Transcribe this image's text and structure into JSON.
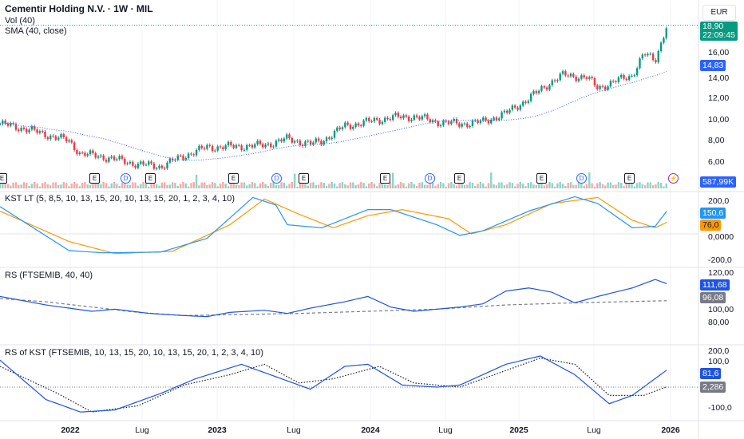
{
  "header": {
    "title": "Cementir Holding N.V. · 1W · MIL",
    "vol": "Vol (40)",
    "sma": "SMA (40, close)"
  },
  "currency": "EUR",
  "price_tag": {
    "value": "18,90",
    "countdown": "22:09:45",
    "color": "#089981"
  },
  "sma_tag": {
    "value": "14,83",
    "color": "#2962ff"
  },
  "volume_tag": {
    "value": "587,99K",
    "color": "#2962ff"
  },
  "price_ticks": [
    "16,00",
    "14,00",
    "12,00",
    "10,00",
    "8,00",
    "6,00"
  ],
  "kst": {
    "label": "KST LT (5, 8,5, 10, 13, 15, 20, 10, 13, 15, 20, 1, 2, 3, 4, 10)",
    "value": "150,6",
    "signal": "76,0",
    "ticks": [
      "200,0",
      "0,0000",
      "-200,0"
    ]
  },
  "rs": {
    "label": "RS (FTSEMIB, 40, 40)",
    "value": "111,68",
    "ma": "96,08",
    "ticks": [
      "120,00",
      "100,00",
      "80,00"
    ]
  },
  "rskst": {
    "label": "RS of KST (FTSEMIB, 10, 13, 15, 20, 10, 13, 15, 20, 1, 2, 3, 4, 10)",
    "value": "81,6",
    "signal": "2,286",
    "ticks": [
      "200,0",
      "100,0",
      "-100,0"
    ]
  },
  "x_labels": [
    {
      "t": "2022",
      "b": true
    },
    {
      "t": "Lug",
      "b": false
    },
    {
      "t": "2023",
      "b": true
    },
    {
      "t": "Lug",
      "b": false
    },
    {
      "t": "2024",
      "b": true
    },
    {
      "t": "Lug",
      "b": false
    },
    {
      "t": "2025",
      "b": true
    },
    {
      "t": "Lug",
      "b": false
    },
    {
      "t": "2026",
      "b": true
    }
  ],
  "events": [
    {
      "k": "E"
    },
    {
      "k": "E"
    },
    {
      "k": "D"
    },
    {
      "k": "E"
    },
    {
      "k": "E"
    },
    {
      "k": "D"
    },
    {
      "k": "E"
    },
    {
      "k": "E"
    },
    {
      "k": "D"
    },
    {
      "k": "E"
    },
    {
      "k": "E"
    },
    {
      "k": "D"
    },
    {
      "k": "E"
    }
  ],
  "chart_data": {
    "type": "line",
    "x_unit": "months since Oct 2021",
    "price": [
      [
        0,
        9.6
      ],
      [
        2,
        9.2
      ],
      [
        4,
        8.6
      ],
      [
        6,
        8.0
      ],
      [
        7,
        6.8
      ],
      [
        9,
        6.5
      ],
      [
        12,
        5.8
      ],
      [
        14,
        5.6
      ],
      [
        16,
        6.6
      ],
      [
        18,
        7.4
      ],
      [
        21,
        7.5
      ],
      [
        23,
        7.6
      ],
      [
        25,
        8.2
      ],
      [
        27,
        7.7
      ],
      [
        28,
        8.0
      ],
      [
        30,
        9.4
      ],
      [
        32,
        9.8
      ],
      [
        34,
        10.2
      ],
      [
        36,
        10.3
      ],
      [
        38,
        9.8
      ],
      [
        40,
        9.6
      ],
      [
        42,
        9.8
      ],
      [
        44,
        10.6
      ],
      [
        46,
        12.0
      ],
      [
        48,
        13.6
      ],
      [
        49,
        14.2
      ],
      [
        51,
        14.0
      ],
      [
        52,
        13.0
      ],
      [
        54,
        13.8
      ],
      [
        55,
        14.2
      ],
      [
        56,
        16.2
      ],
      [
        57,
        15.6
      ],
      [
        58,
        18.9
      ]
    ],
    "kst": [
      [
        0,
        180
      ],
      [
        6,
        -110
      ],
      [
        9,
        -125
      ],
      [
        14,
        -120
      ],
      [
        18,
        -30
      ],
      [
        22,
        240
      ],
      [
        24,
        190
      ],
      [
        25,
        60
      ],
      [
        28,
        40
      ],
      [
        32,
        160
      ],
      [
        34,
        160
      ],
      [
        38,
        60
      ],
      [
        40,
        -10
      ],
      [
        42,
        20
      ],
      [
        46,
        150
      ],
      [
        50,
        245
      ],
      [
        52,
        200
      ],
      [
        55,
        40
      ],
      [
        57,
        50
      ],
      [
        58,
        150
      ]
    ],
    "kst_signal": [
      [
        0,
        150
      ],
      [
        6,
        -50
      ],
      [
        10,
        -130
      ],
      [
        15,
        -115
      ],
      [
        20,
        60
      ],
      [
        23,
        230
      ],
      [
        26,
        130
      ],
      [
        29,
        40
      ],
      [
        32,
        120
      ],
      [
        35,
        160
      ],
      [
        39,
        100
      ],
      [
        41,
        0
      ],
      [
        44,
        60
      ],
      [
        48,
        200
      ],
      [
        52,
        240
      ],
      [
        55,
        90
      ],
      [
        57,
        40
      ],
      [
        58,
        76
      ]
    ],
    "rs": [
      [
        0,
        100
      ],
      [
        2,
        96
      ],
      [
        4,
        92
      ],
      [
        6,
        89
      ],
      [
        8,
        86
      ],
      [
        10,
        88
      ],
      [
        13,
        84
      ],
      [
        16,
        82
      ],
      [
        18,
        81
      ],
      [
        20,
        85
      ],
      [
        23,
        87
      ],
      [
        25,
        84
      ],
      [
        27,
        89
      ],
      [
        30,
        95
      ],
      [
        32,
        100
      ],
      [
        34,
        90
      ],
      [
        36,
        86
      ],
      [
        38,
        88
      ],
      [
        40,
        90
      ],
      [
        42,
        93
      ],
      [
        44,
        105
      ],
      [
        46,
        108
      ],
      [
        48,
        104
      ],
      [
        50,
        94
      ],
      [
        52,
        100
      ],
      [
        55,
        108
      ],
      [
        57,
        116
      ],
      [
        58,
        112
      ]
    ],
    "rs_ma": [
      [
        0,
        98
      ],
      [
        4,
        95
      ],
      [
        12,
        85
      ],
      [
        16,
        82
      ],
      [
        26,
        84
      ],
      [
        38,
        88
      ],
      [
        44,
        92
      ],
      [
        50,
        94
      ],
      [
        58,
        96
      ]
    ],
    "rskst": [
      [
        0,
        130
      ],
      [
        4,
        -60
      ],
      [
        7,
        -120
      ],
      [
        10,
        -110
      ],
      [
        14,
        -30
      ],
      [
        17,
        40
      ],
      [
        21,
        110
      ],
      [
        24,
        50
      ],
      [
        27,
        -10
      ],
      [
        30,
        100
      ],
      [
        32,
        110
      ],
      [
        35,
        10
      ],
      [
        38,
        0
      ],
      [
        40,
        10
      ],
      [
        44,
        110
      ],
      [
        47,
        150
      ],
      [
        50,
        60
      ],
      [
        53,
        -80
      ],
      [
        55,
        -40
      ],
      [
        58,
        82
      ]
    ],
    "rskst_signal": [
      [
        0,
        100
      ],
      [
        5,
        -30
      ],
      [
        8,
        -120
      ],
      [
        12,
        -90
      ],
      [
        16,
        10
      ],
      [
        20,
        60
      ],
      [
        23,
        110
      ],
      [
        26,
        20
      ],
      [
        29,
        40
      ],
      [
        33,
        100
      ],
      [
        36,
        20
      ],
      [
        40,
        0
      ],
      [
        44,
        80
      ],
      [
        47,
        140
      ],
      [
        50,
        110
      ],
      [
        53,
        -40
      ],
      [
        56,
        -40
      ],
      [
        58,
        2
      ]
    ]
  }
}
